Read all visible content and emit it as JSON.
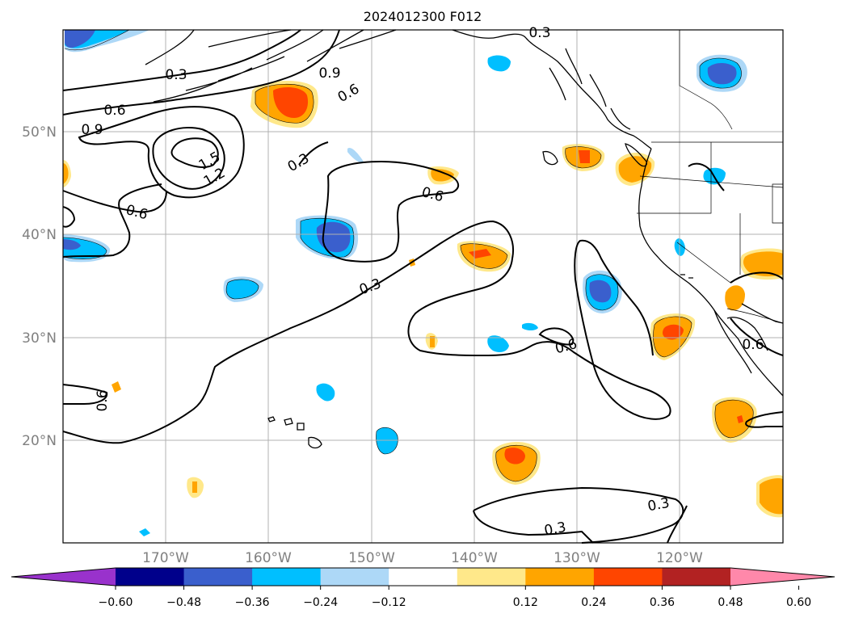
{
  "title": "2024012300 F012",
  "map": {
    "lat_ticks": [
      "50°N",
      "40°N",
      "30°N",
      "20°N"
    ],
    "lon_ticks": [
      "170°W",
      "160°W",
      "150°W",
      "140°W",
      "130°W",
      "120°W"
    ],
    "contour_labels": [
      "0.3",
      "0.6",
      "0.9",
      "1.2",
      "1.5"
    ],
    "colors": {
      "axis_text": "#808080",
      "grid": "#b0b0b0",
      "coast": "#000000",
      "contour": "#000000"
    }
  },
  "colorbar": {
    "tick_labels": [
      "−0.60",
      "−0.48",
      "−0.36",
      "−0.24",
      "−0.12",
      "0.12",
      "0.24",
      "0.36",
      "0.48",
      "0.60"
    ],
    "bins": [
      "#9932cc",
      "#00008b",
      "#3a5fcd",
      "#00bfff",
      "#add8f7",
      "#ffffff",
      "#ffe88a",
      "#ffa500",
      "#ff4500",
      "#b22222",
      "#ff88aa"
    ]
  }
}
